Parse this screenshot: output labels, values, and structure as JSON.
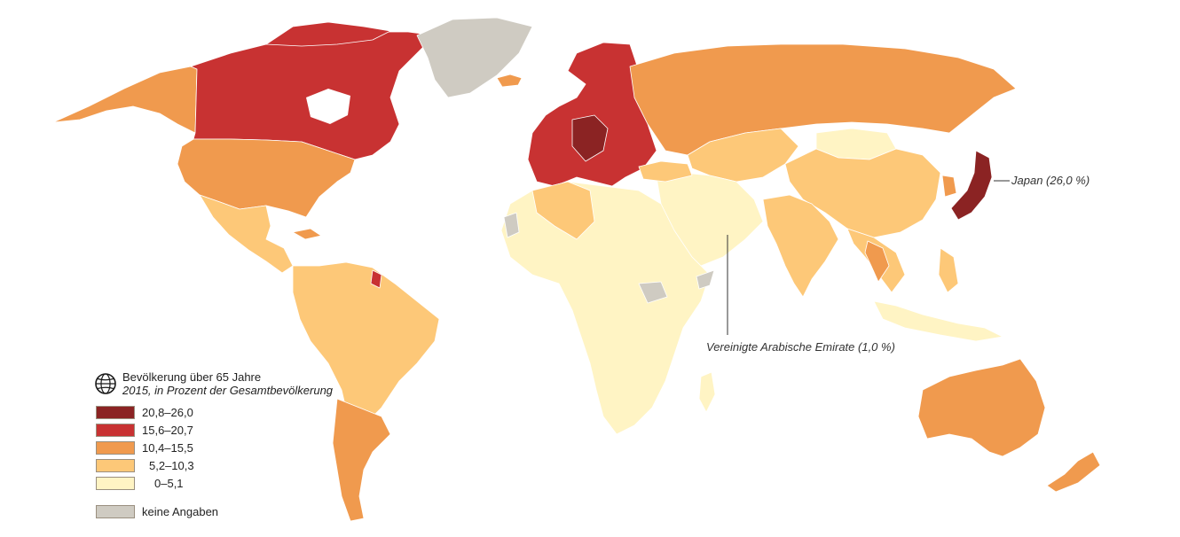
{
  "legend": {
    "title": "Bevölkerung über 65 Jahre",
    "subtitle": "2015, in Prozent der Gesamtbevölkerung",
    "icon": "globe-icon",
    "classes": [
      {
        "label": "20,8–26,0",
        "color": "#8b2323"
      },
      {
        "label": "15,6–20,7",
        "color": "#c83232"
      },
      {
        "label": "10,4–15,5",
        "color": "#f09a4e"
      },
      {
        "label": "5,2–10,3",
        "color": "#fdc878"
      },
      {
        "label": "0–5,1",
        "color": "#fff4c4"
      },
      {
        "label": "keine Angaben",
        "color": "#cfcbc2"
      }
    ]
  },
  "annotations": {
    "japan": "Japan (26,0 %)",
    "uae": "Vereinigte Arabische Emirate (1,0 %)"
  }
}
